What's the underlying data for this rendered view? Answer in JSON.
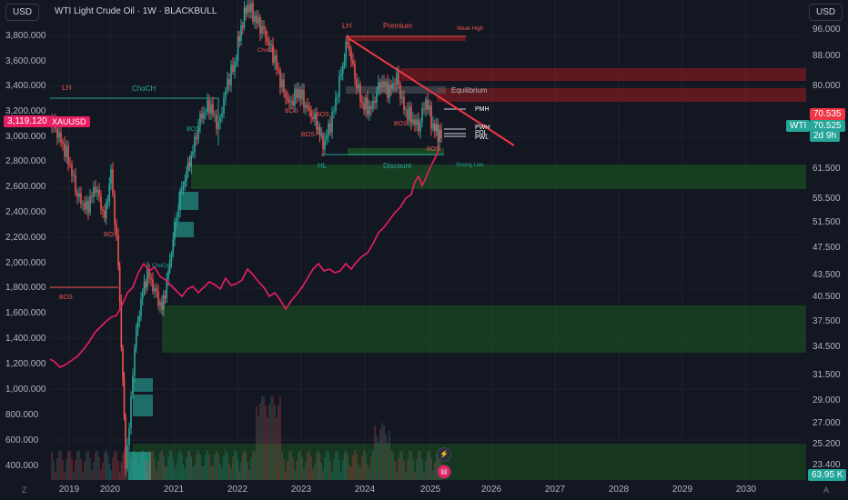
{
  "header": {
    "symbol_title": "WTI Light Crude Oil · 1W · BLACKBULL",
    "left_currency_button": "USD",
    "right_currency_button": "USD"
  },
  "left_axis": {
    "ticks": [
      "3,800.000",
      "3,600.000",
      "3,400.000",
      "3,200.000",
      "3,000.000",
      "2,800.000",
      "2,600.000",
      "2,400.000",
      "2,200.000",
      "2,000.000",
      "1,800.000",
      "1,600.000",
      "1,400.000",
      "1,200.000",
      "1,000.000",
      "800.000",
      "600.000",
      "400.000"
    ],
    "price_tag_value": "3,119.120",
    "price_tag_symbol": "XAUUSD"
  },
  "right_axis": {
    "ticks": [
      "96.000",
      "88.000",
      "80.000",
      "70.535",
      "70.525",
      "61.500",
      "55.500",
      "51.500",
      "47.500",
      "43.500",
      "40.500",
      "37.500",
      "34.500",
      "31.500",
      "29.000",
      "27.000",
      "25.200",
      "23.400"
    ],
    "red_price_tag": "70.535",
    "green_price_tag": "70.525",
    "countdown_tag": "2d 9h",
    "symbol_badge": "WTI",
    "volume_tag": "63.95 K"
  },
  "x_axis": {
    "labels": [
      "2019",
      "2020",
      "2021",
      "2022",
      "2023",
      "2024",
      "2025",
      "2026",
      "2027",
      "2028",
      "2029",
      "2030"
    ],
    "left_icon": "Z",
    "right_icon": "A"
  },
  "annotations": {
    "lh_left": "LH",
    "choch_top": "ChoCH",
    "bos_left": "BOS",
    "bos_2020": "BOS",
    "bos_2021": "BOS",
    "choch_2020": "ChoCH",
    "choch_2022": "ChoCH",
    "bos_2022a": "BOS",
    "bos_2022b": "BOS",
    "bos_2023": "BOS",
    "bos_2024": "BOS",
    "bos_2025": "BOS",
    "lh_top": "LH",
    "premium": "Premium",
    "weak_high": "Weak High",
    "equilibrium": "Equilibrium",
    "pmh": "PMH",
    "pwh": "PWH",
    "pdl": "PDL",
    "pwl": "PWL",
    "hl": "HL",
    "discount": "Discount",
    "strong_low": "Strong Low"
  },
  "icons": {
    "lightning": "lightning-icon",
    "flag": "us-flag-icon"
  },
  "colors": {
    "background": "#131722",
    "bull_candle": "#26a69a",
    "bear_candle": "#ef5350",
    "gold_line": "#e91e63",
    "trendline": "#f23645",
    "demand_zone": "#1b5e20",
    "supply_zone": "#b71c1c"
  }
}
